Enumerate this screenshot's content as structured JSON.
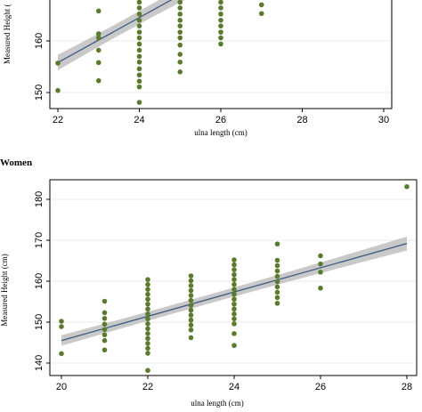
{
  "colors": {
    "point": "#5b7a2e",
    "line": "#3d5a80",
    "band": "#bfbfbf",
    "grid": "#e6ecef",
    "frame": "#000000"
  },
  "chart_data": [
    {
      "type": "scatter",
      "title": "",
      "xlabel": "ulna length (cm)",
      "ylabel": "Measured Height (",
      "xlim": [
        22,
        30
      ],
      "ylim": [
        147.3,
        174.8
      ],
      "xticks": [
        22,
        24,
        26,
        28,
        30
      ],
      "yticks": [
        150,
        160
      ],
      "grid": true,
      "fit": {
        "x0": 22,
        "y0": 155.8,
        "x1": 26.4,
        "y1": 175,
        "band": 1.5
      },
      "series": [
        {
          "points": [
            [
              22,
              155.7
            ],
            [
              22,
              150.4
            ],
            [
              23,
              173.5
            ],
            [
              23,
              169.2
            ],
            [
              23,
              165.8
            ],
            [
              23,
              161.4
            ],
            [
              23,
              160.6
            ],
            [
              23,
              158.2
            ],
            [
              23,
              155.8
            ],
            [
              23,
              152.3
            ],
            [
              24,
              174.6
            ],
            [
              24,
              173.3
            ],
            [
              24,
              172.1
            ],
            [
              24,
              171.0
            ],
            [
              24,
              169.8
            ],
            [
              24,
              168.6
            ],
            [
              24,
              167.5
            ],
            [
              24,
              166.4
            ],
            [
              24,
              165.2
            ],
            [
              24,
              164.0
            ],
            [
              24,
              162.9
            ],
            [
              24,
              161.7
            ],
            [
              24,
              160.6
            ],
            [
              24,
              159.4
            ],
            [
              24,
              158.2
            ],
            [
              24,
              157.0
            ],
            [
              24,
              155.9
            ],
            [
              24,
              154.6
            ],
            [
              24,
              153.4
            ],
            [
              24,
              152.2
            ],
            [
              24,
              151.1
            ],
            [
              24,
              148.1
            ],
            [
              25,
              174.4
            ],
            [
              25,
              173.3
            ],
            [
              25,
              172.1
            ],
            [
              25,
              171.0
            ],
            [
              25,
              169.8
            ],
            [
              25,
              168.6
            ],
            [
              25,
              167.5
            ],
            [
              25,
              166.4
            ],
            [
              25,
              165.2
            ],
            [
              25,
              164.0
            ],
            [
              25,
              162.9
            ],
            [
              25,
              161.7
            ],
            [
              25,
              160.6
            ],
            [
              25,
              159.2
            ],
            [
              25,
              157.4
            ],
            [
              25,
              155.9
            ],
            [
              25,
              154.0
            ],
            [
              26,
              174.4
            ],
            [
              26,
              173.3
            ],
            [
              26,
              172.1
            ],
            [
              26,
              171.0
            ],
            [
              26,
              169.8
            ],
            [
              26,
              168.6
            ],
            [
              26,
              167.5
            ],
            [
              26,
              166.4
            ],
            [
              26,
              165.2
            ],
            [
              26,
              164.0
            ],
            [
              26,
              162.9
            ],
            [
              26,
              161.7
            ],
            [
              26,
              160.6
            ],
            [
              26,
              159.4
            ],
            [
              27,
              174.5
            ],
            [
              27,
              173.3
            ],
            [
              27,
              168.9
            ],
            [
              27,
              167.0
            ],
            [
              27,
              165.3
            ]
          ]
        }
      ]
    },
    {
      "type": "scatter",
      "title": "Women",
      "xlabel": "ulna length (cm)",
      "ylabel": "Measured Height (cm)",
      "xlim": [
        20,
        28
      ],
      "ylim": [
        137,
        185
      ],
      "xticks": [
        20,
        22,
        24,
        26,
        28
      ],
      "yticks": [
        140,
        150,
        160,
        170,
        180
      ],
      "grid": true,
      "fit": {
        "x0": 20,
        "y0": 145.5,
        "x1": 28,
        "y1": 169.2,
        "band": 1.3
      },
      "series": [
        {
          "points": [
            [
              20,
              150.2
            ],
            [
              20,
              148.9
            ],
            [
              20,
              142.3
            ],
            [
              21,
              155.1
            ],
            [
              21,
              152.3
            ],
            [
              21,
              150.9
            ],
            [
              21,
              149.5
            ],
            [
              21,
              148.2
            ],
            [
              21,
              146.9
            ],
            [
              21,
              145.5
            ],
            [
              21,
              143.2
            ],
            [
              22,
              160.4
            ],
            [
              22,
              159.2
            ],
            [
              22,
              158.0
            ],
            [
              22,
              156.8
            ],
            [
              22,
              155.6
            ],
            [
              22,
              154.4
            ],
            [
              22,
              153.2
            ],
            [
              22,
              152.0
            ],
            [
              22,
              150.8
            ],
            [
              22,
              149.6
            ],
            [
              22,
              148.4
            ],
            [
              22,
              147.2
            ],
            [
              22,
              146.0
            ],
            [
              22,
              144.8
            ],
            [
              22,
              143.6
            ],
            [
              22,
              142.4
            ],
            [
              22,
              138.2
            ],
            [
              23,
              161.3
            ],
            [
              23,
              160.1
            ],
            [
              23,
              158.9
            ],
            [
              23,
              157.7
            ],
            [
              23,
              156.5
            ],
            [
              23,
              155.3
            ],
            [
              23,
              154.1
            ],
            [
              23,
              152.9
            ],
            [
              23,
              151.7
            ],
            [
              23,
              150.5
            ],
            [
              23,
              149.3
            ],
            [
              23,
              148.1
            ],
            [
              23,
              146.2
            ],
            [
              24,
              165.2
            ],
            [
              24,
              164.0
            ],
            [
              24,
              162.8
            ],
            [
              24,
              161.6
            ],
            [
              24,
              160.4
            ],
            [
              24,
              159.2
            ],
            [
              24,
              158.0
            ],
            [
              24,
              156.8
            ],
            [
              24,
              155.6
            ],
            [
              24,
              154.4
            ],
            [
              24,
              153.2
            ],
            [
              24,
              152.0
            ],
            [
              24,
              150.8
            ],
            [
              24,
              149.6
            ],
            [
              24,
              147.2
            ],
            [
              24,
              144.3
            ],
            [
              25,
              169.1
            ],
            [
              25,
              165.1
            ],
            [
              25,
              163.8
            ],
            [
              25,
              162.5
            ],
            [
              25,
              161.2
            ],
            [
              25,
              159.9
            ],
            [
              25,
              158.6
            ],
            [
              25,
              157.3
            ],
            [
              25,
              156.0
            ],
            [
              25,
              154.6
            ],
            [
              26,
              166.2
            ],
            [
              26,
              164.2
            ],
            [
              26,
              162.2
            ],
            [
              26,
              158.3
            ],
            [
              28,
              183.1
            ]
          ]
        }
      ]
    }
  ]
}
